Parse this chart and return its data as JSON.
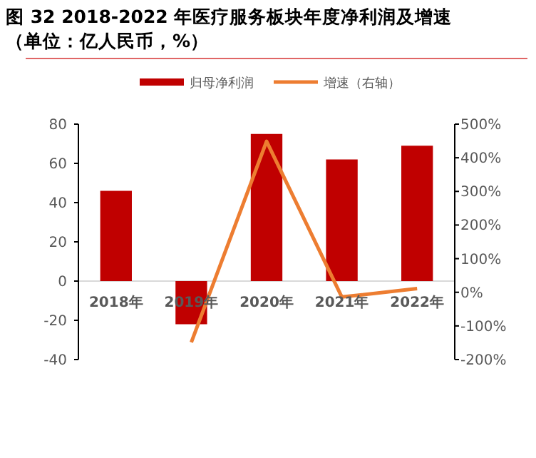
{
  "chart_data": {
    "type": "bar",
    "title": "图 32 2018-2022 年医疗服务板块年度净利润及增速（单位：亿人民币，%）",
    "categories": [
      "2018年",
      "2019年",
      "2020年",
      "2021年",
      "2022年"
    ],
    "series": [
      {
        "name": "归母净利润",
        "color": "#c00000",
        "values": [
          46,
          -22,
          75,
          62,
          69
        ]
      },
      {
        "name": "增速（右轴）",
        "type": "line",
        "axis": "y2",
        "color": "#ed7d31",
        "values": [
          null,
          -149,
          449,
          -14,
          11
        ]
      }
    ],
    "ylim": [
      -40,
      80
    ],
    "yticks": [
      -40,
      -20,
      0,
      20,
      40,
      60,
      80
    ],
    "y2lim": [
      -200,
      500
    ],
    "y2ticks": [
      {
        "value": -200,
        "label": "-200%"
      },
      {
        "value": -100,
        "label": "-100%"
      },
      {
        "value": 0,
        "label": "0%"
      },
      {
        "value": 100,
        "label": "100%"
      },
      {
        "value": 200,
        "label": "200%"
      },
      {
        "value": 300,
        "label": "300%"
      },
      {
        "value": 400,
        "label": "400%"
      },
      {
        "value": 500,
        "label": "500%"
      }
    ],
    "legend": "top",
    "grid": false
  }
}
